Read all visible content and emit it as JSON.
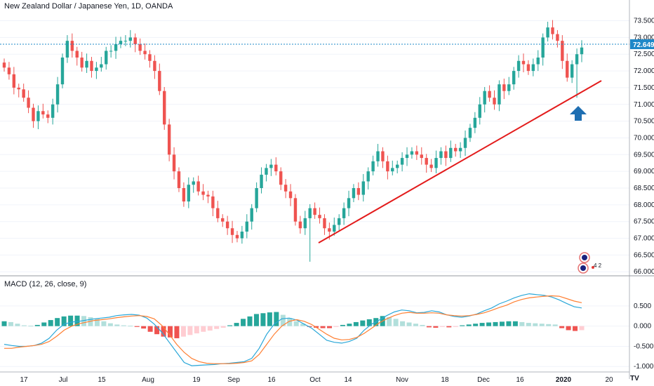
{
  "header": {
    "title": "New Zealand Dollar / Japanese Yen, 1D, OANDA"
  },
  "macd_panel": {
    "label": "MACD (12, 26, close, 9)"
  },
  "events_badge": "4 2",
  "watermark": "TV",
  "colors": {
    "up": "#26a69a",
    "down": "#ef5350",
    "trendline": "#e31b1b",
    "arrow": "#1f6fb2",
    "macd_line": "#2aa7d8",
    "signal_line": "#ff7f32",
    "hist_up_strong": "#26a69a",
    "hist_up_weak": "#b2dfdb",
    "hist_down_strong": "#ef5350",
    "hist_down_weak": "#ffcdd2",
    "price_label": "#1e88c8"
  },
  "chart_data": [
    {
      "type": "candlestick",
      "title": "New Zealand Dollar / Japanese Yen, 1D, OANDA",
      "ylim": [
        65.9,
        73.7
      ],
      "y_ticks": [
        "66.000",
        "66.500",
        "67.000",
        "67.500",
        "68.000",
        "68.500",
        "69.000",
        "69.500",
        "70.000",
        "70.500",
        "71.000",
        "71.500",
        "72.000",
        "72.500",
        "73.000",
        "73.500"
      ],
      "x_ticks": [
        "17",
        "Jul",
        "15",
        "Aug",
        "19",
        "Sep",
        "16",
        "Oct",
        "14",
        "Nov",
        "18",
        "Dec",
        "16",
        "2020",
        "20"
      ],
      "last_price": "72.649",
      "close": [
        72.1,
        71.9,
        71.5,
        71.45,
        71.2,
        70.9,
        70.5,
        70.8,
        70.7,
        70.6,
        71.0,
        71.6,
        72.4,
        72.9,
        72.6,
        72.4,
        72.1,
        72.3,
        72.0,
        72.1,
        72.2,
        72.6,
        72.6,
        72.8,
        72.9,
        72.9,
        73.0,
        72.8,
        72.6,
        72.5,
        72.3,
        72.0,
        71.4,
        70.4,
        69.5,
        69.0,
        68.5,
        68.1,
        68.6,
        68.7,
        68.4,
        68.3,
        68.25,
        67.9,
        67.6,
        67.5,
        67.3,
        67.1,
        67.0,
        67.2,
        67.5,
        67.9,
        68.5,
        68.9,
        69.1,
        69.2,
        69.0,
        68.6,
        68.4,
        68.2,
        67.5,
        67.3,
        67.6,
        67.9,
        67.7,
        67.6,
        67.3,
        67.2,
        67.4,
        67.6,
        67.9,
        68.2,
        68.5,
        68.3,
        68.7,
        69.0,
        69.3,
        69.6,
        69.3,
        69.0,
        69.1,
        69.2,
        69.4,
        69.5,
        69.6,
        69.5,
        69.4,
        69.2,
        69.1,
        69.4,
        69.6,
        69.4,
        69.7,
        69.6,
        69.7,
        70.0,
        70.3,
        70.6,
        71.0,
        71.4,
        71.2,
        71.0,
        71.6,
        71.4,
        71.6,
        72.0,
        72.3,
        72.2,
        72.0,
        72.2,
        72.4,
        73.0,
        73.3,
        73.1,
        72.9,
        72.3,
        71.8,
        72.2,
        72.5,
        72.7
      ],
      "low_wicks_notable": [
        {
          "index": 63,
          "low": 66.3
        },
        {
          "index": 118,
          "low": 71.2
        }
      ]
    },
    {
      "type": "line",
      "title": "MACD (12, 26, close, 9)",
      "ylim": [
        -1.1,
        0.95
      ],
      "y_ticks": [
        "0.500",
        "0.000",
        "-0.500",
        "-1.000"
      ],
      "series": [
        {
          "name": "MACD",
          "values": [
            -0.45,
            -0.48,
            -0.5,
            -0.5,
            -0.48,
            -0.42,
            -0.3,
            -0.1,
            0.05,
            0.1,
            0.12,
            0.15,
            0.18,
            0.2,
            0.22,
            0.26,
            0.28,
            0.29,
            0.27,
            0.2,
            0.05,
            -0.15,
            -0.4,
            -0.65,
            -0.9,
            -0.98,
            -0.97,
            -0.96,
            -0.95,
            -0.93,
            -0.92,
            -0.9,
            -0.88,
            -0.8,
            -0.55,
            -0.2,
            0.05,
            0.18,
            0.2,
            0.15,
            0.05,
            -0.05,
            -0.2,
            -0.35,
            -0.4,
            -0.42,
            -0.38,
            -0.3,
            -0.1,
            0.05,
            0.15,
            0.26,
            0.35,
            0.4,
            0.38,
            0.33,
            0.34,
            0.38,
            0.35,
            0.28,
            0.24,
            0.22,
            0.25,
            0.3,
            0.38,
            0.45,
            0.55,
            0.62,
            0.7,
            0.76,
            0.8,
            0.78,
            0.76,
            0.72,
            0.65,
            0.56,
            0.48,
            0.45
          ]
        },
        {
          "name": "Signal",
          "values": [
            -0.55,
            -0.55,
            -0.52,
            -0.5,
            -0.48,
            -0.45,
            -0.38,
            -0.25,
            -0.1,
            0.0,
            0.06,
            0.1,
            0.14,
            0.16,
            0.18,
            0.21,
            0.23,
            0.25,
            0.26,
            0.24,
            0.18,
            0.02,
            -0.2,
            -0.45,
            -0.65,
            -0.8,
            -0.88,
            -0.92,
            -0.93,
            -0.93,
            -0.93,
            -0.92,
            -0.9,
            -0.86,
            -0.7,
            -0.45,
            -0.2,
            0.0,
            0.12,
            0.16,
            0.12,
            0.04,
            -0.08,
            -0.2,
            -0.3,
            -0.34,
            -0.33,
            -0.28,
            -0.18,
            -0.05,
            0.08,
            0.18,
            0.26,
            0.32,
            0.34,
            0.32,
            0.32,
            0.33,
            0.32,
            0.28,
            0.26,
            0.25,
            0.26,
            0.29,
            0.33,
            0.39,
            0.46,
            0.52,
            0.6,
            0.66,
            0.7,
            0.72,
            0.74,
            0.75,
            0.74,
            0.68,
            0.62,
            0.58
          ]
        }
      ],
      "histogram": [
        0.12,
        0.1,
        0.06,
        0.02,
        0.01,
        0.03,
        0.09,
        0.15,
        0.2,
        0.24,
        0.26,
        0.26,
        0.25,
        0.22,
        0.18,
        0.12,
        0.07,
        0.04,
        0.02,
        0.01,
        -0.02,
        -0.06,
        -0.14,
        -0.2,
        -0.26,
        -0.28,
        -0.3,
        -0.26,
        -0.22,
        -0.18,
        -0.14,
        -0.11,
        -0.07,
        -0.04,
        0.02,
        0.08,
        0.18,
        0.24,
        0.3,
        0.32,
        0.34,
        0.35,
        0.28,
        0.2,
        0.12,
        0.06,
        -0.02,
        -0.04,
        -0.05,
        -0.05,
        -0.02,
        0.03,
        0.06,
        0.1,
        0.14,
        0.17,
        0.2,
        0.25,
        0.22,
        0.18,
        0.12,
        0.09,
        0.06,
        0.03,
        -0.03,
        -0.04,
        -0.02,
        -0.03,
        -0.02,
        0.02,
        0.04,
        0.06,
        0.08,
        0.09,
        0.1,
        0.11,
        0.12,
        0.12,
        0.1,
        0.08,
        0.07,
        0.06,
        0.05,
        0.04,
        -0.05,
        -0.1,
        -0.12,
        -0.1
      ]
    }
  ]
}
